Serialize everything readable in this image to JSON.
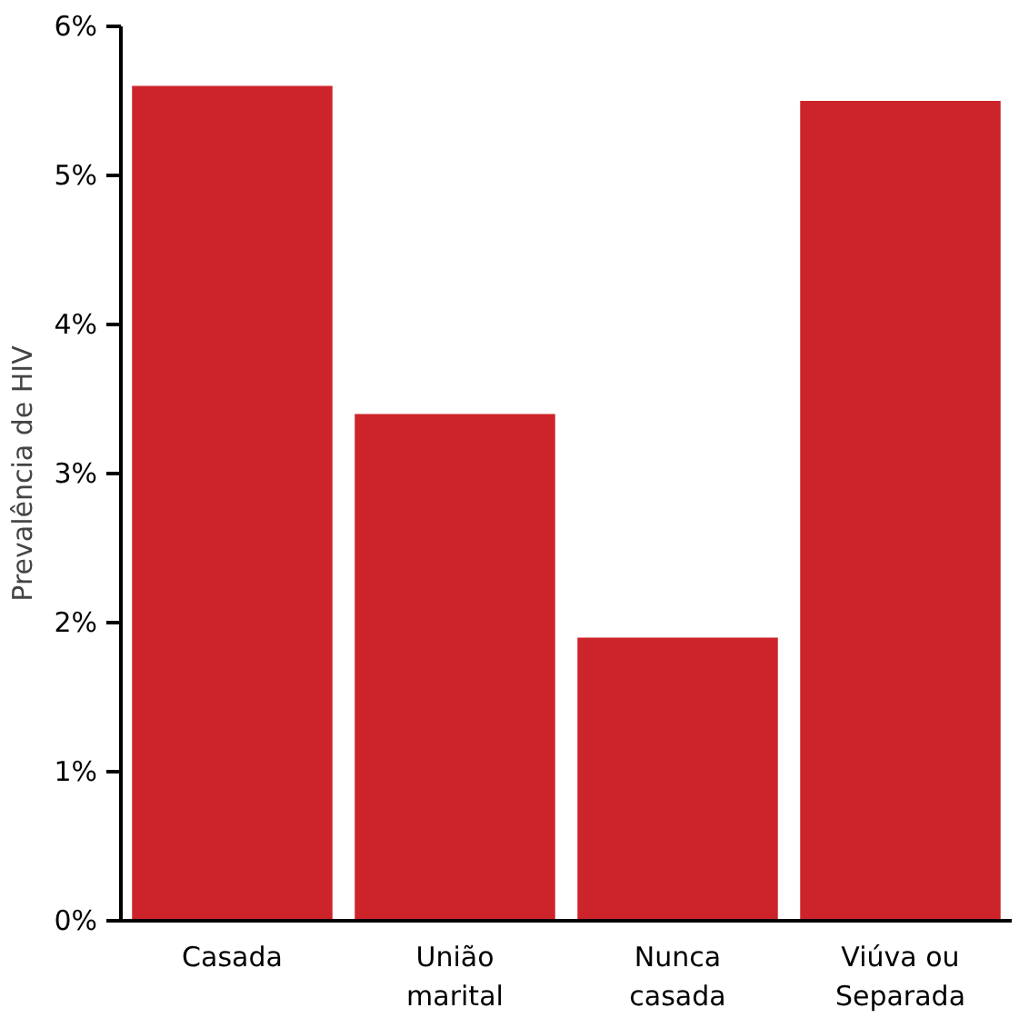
{
  "chart_data": {
    "type": "bar",
    "ylabel": "Prevalência de HIV",
    "categories": [
      "Casada",
      "União marital",
      "Nunca casada",
      "Viúva ou Separada"
    ],
    "values": [
      5.6,
      3.4,
      1.9,
      5.5
    ],
    "color": "#cd242b",
    "ylim": [
      0,
      6
    ],
    "yticks": [
      {
        "value": 0,
        "label": "0%"
      },
      {
        "value": 1,
        "label": "1%"
      },
      {
        "value": 2,
        "label": "2%"
      },
      {
        "value": 3,
        "label": "3%"
      },
      {
        "value": 4,
        "label": "4%"
      },
      {
        "value": 5,
        "label": "5%"
      },
      {
        "value": 6,
        "label": "6%"
      }
    ],
    "grid": false
  }
}
